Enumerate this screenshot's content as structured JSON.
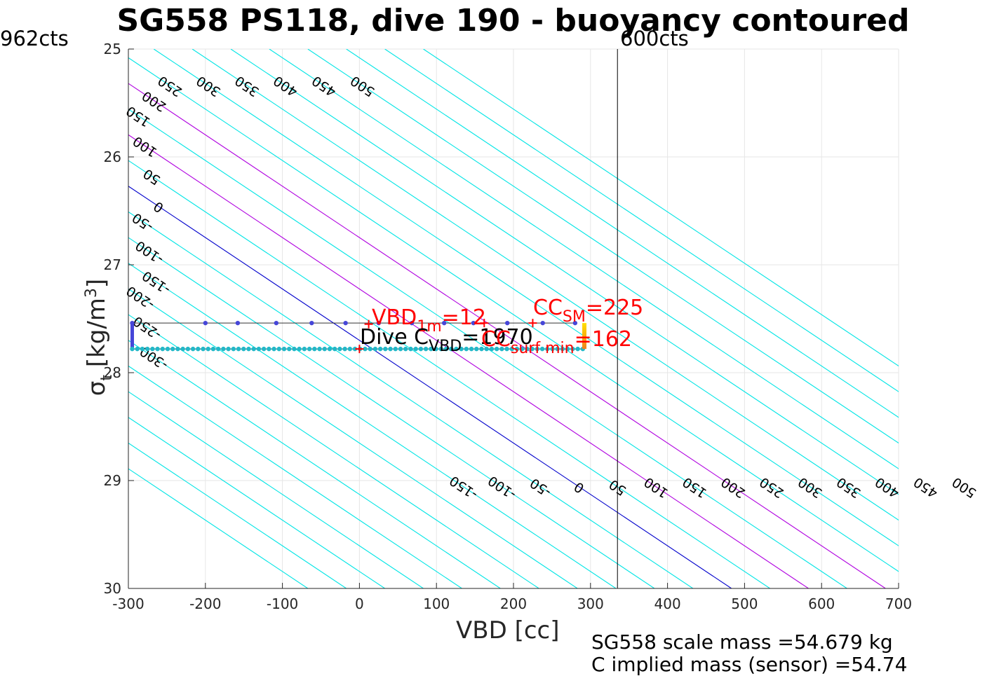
{
  "title": "SG558 PS118, dive 190 - buoyancy contoured",
  "left_corner_label": "962cts",
  "right_corner_label": "600cts",
  "y_axis_label": {
    "symbol": "σ",
    "subscript": "t",
    "units_open": " [kg/m",
    "units_power": "3",
    "units_close": "]"
  },
  "x_axis_label": "VBD [cc]",
  "annotations": {
    "vbd_1m": {
      "main": "VBD",
      "sub": "1m",
      "value": "=12"
    },
    "cc_sm": {
      "main": "CC",
      "sub": "SM",
      "value": "=225"
    },
    "dive_c_vbd": {
      "main": "Dive C",
      "sub": "VBD",
      "value": "=1970"
    },
    "cc_surf_min": {
      "main": "CC",
      "sub": "surf min",
      "value": "=162"
    }
  },
  "notes": {
    "scale_mass": "SG558 scale mass =54.679 kg",
    "implied_mass": "C   implied mass (sensor) =54.74"
  },
  "colors": {
    "contour": "#00e5e5",
    "zero_contour": "#0000cc",
    "highlight_contour": "#b000e0",
    "marker": "#ff0000",
    "grid": "#e6e6e6",
    "dots_upper": "#4646d8",
    "dots_lower": "#22b8c8",
    "climb_start": "#ffe000",
    "climb_end": "#f08020"
  },
  "chart_data": {
    "type": "contour",
    "title": "SG558 PS118, dive 190 - buoyancy contoured",
    "xlabel": "VBD [cc]",
    "ylabel": "σt [kg/m3]",
    "xlim": [
      -300,
      700
    ],
    "ylim": [
      30,
      25
    ],
    "x_ticks": [
      -300,
      -200,
      -100,
      0,
      100,
      200,
      300,
      400,
      500,
      600,
      700
    ],
    "y_ticks": [
      25,
      26,
      27,
      28,
      29,
      30
    ],
    "y_reversed": true,
    "grid": true,
    "vertical_reference_x": 335,
    "contour_model": {
      "description": "buoyancy contour level L passes through (x, sigma) with x = L + slope*(sigma - sigma0)",
      "sigma0": 27.7,
      "slope": 210
    },
    "contour_levels": [
      -550,
      -500,
      -450,
      -400,
      -350,
      -300,
      -250,
      -200,
      -150,
      -100,
      -50,
      0,
      50,
      100,
      150,
      200,
      250,
      300,
      350,
      400,
      450,
      500,
      550,
      600,
      650
    ],
    "highlight_levels": [
      100,
      200
    ],
    "zero_level": 0,
    "top_labels": [
      -300,
      -250,
      -200,
      -150,
      -100,
      -50,
      0,
      50,
      100,
      150,
      200,
      250,
      300,
      350,
      400,
      450,
      500
    ],
    "bottom_labels": [
      -150,
      -100,
      -50,
      0,
      50,
      100,
      150,
      200,
      250,
      300,
      350,
      400,
      450,
      500
    ],
    "series": [
      {
        "points": [
          [
            -295,
            27.54
          ],
          [
            -200,
            27.54
          ],
          [
            -158,
            27.54
          ],
          [
            -108,
            27.54
          ],
          [
            -62,
            27.54
          ],
          [
            -18,
            27.54
          ],
          [
            25,
            27.54
          ],
          [
            68,
            27.54
          ],
          [
            110,
            27.54
          ],
          [
            148,
            27.54
          ],
          [
            192,
            27.54
          ],
          [
            238,
            27.54
          ],
          [
            280,
            27.54
          ]
        ]
      },
      {
        "x_range": [
          -295,
          290
        ],
        "sigma": 27.78,
        "count": 90
      },
      {
        "x": 292,
        "sigma_range": [
          27.54,
          27.78
        ]
      }
    ],
    "markers": [
      {
        "x": 12,
        "sigma": 27.55
      },
      {
        "x": 225,
        "sigma": 27.54
      },
      {
        "x": 162,
        "sigma": 27.54
      },
      {
        "x": 0,
        "sigma": 27.78
      }
    ]
  }
}
